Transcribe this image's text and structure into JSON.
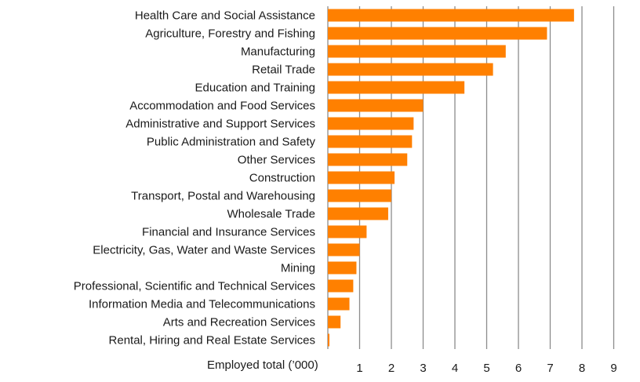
{
  "chart_data": {
    "type": "bar",
    "orientation": "horizontal",
    "title": "",
    "xlabel": "Employed total (’000)",
    "ylabel": "",
    "xlim": [
      0,
      9
    ],
    "xticks": [
      1,
      2,
      3,
      4,
      5,
      6,
      7,
      8,
      9
    ],
    "grid": true,
    "bar_color": "#FF8000",
    "grid_color": "#8c8c8c",
    "categories": [
      "Health Care and Social Assistance",
      "Agriculture, Forestry and Fishing",
      "Manufacturing",
      "Retail Trade",
      "Education and Training",
      "Accommodation and Food Services",
      "Administrative and Support Services",
      "Public Administration and Safety",
      "Other Services",
      "Construction",
      "Transport, Postal and Warehousing",
      "Wholesale Trade",
      "Financial and Insurance Services",
      "Electricity, Gas, Water and Waste Services",
      "Mining",
      "Professional, Scientific and Technical Services",
      "Information Media and Telecommunications",
      "Arts and Recreation Services",
      "Rental, Hiring and Real Estate Services"
    ],
    "values": [
      7.75,
      6.9,
      5.6,
      5.2,
      4.3,
      3.0,
      2.7,
      2.65,
      2.5,
      2.1,
      2.0,
      1.9,
      1.22,
      1.0,
      0.9,
      0.8,
      0.68,
      0.4,
      0.05
    ]
  }
}
